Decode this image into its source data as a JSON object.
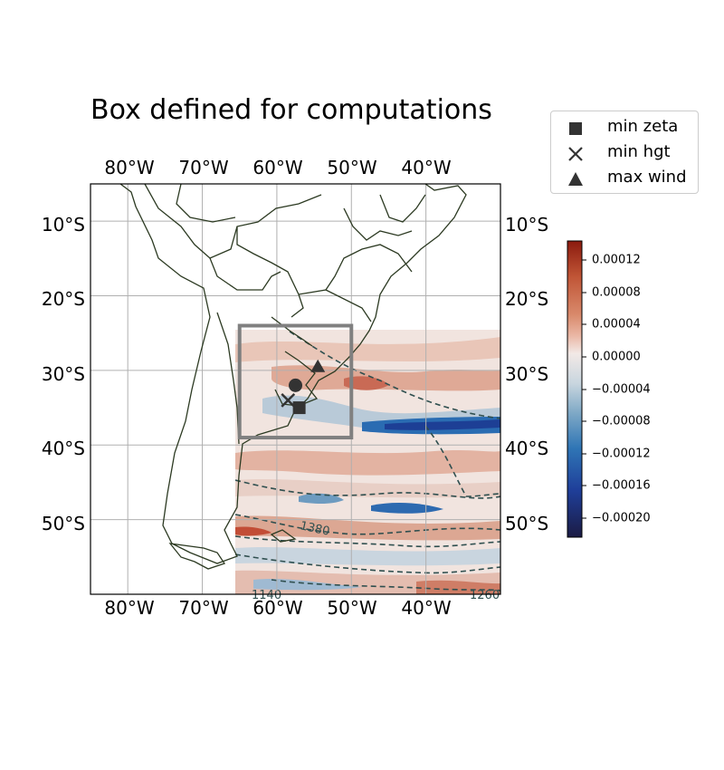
{
  "title": "Box defined for computations",
  "lon_ticks": [
    "80°W",
    "70°W",
    "60°W",
    "50°W",
    "40°W"
  ],
  "lat_ticks": [
    "10°S",
    "20°S",
    "30°S",
    "40°S",
    "50°S"
  ],
  "legend": [
    {
      "label": "min zeta",
      "marker": "square"
    },
    {
      "label": "min hgt",
      "marker": "x"
    },
    {
      "label": "max wind",
      "marker": "triangle"
    }
  ],
  "colorbar": {
    "ticks": [
      "0.00012",
      "0.00008",
      "0.00004",
      "0.00000",
      "−0.00004",
      "−0.00008",
      "−0.00012",
      "−0.00016",
      "−0.00020"
    ],
    "colors": [
      "#8b1a0e",
      "#c05536",
      "#d98a6c",
      "#eab7a5",
      "#f2e9e6",
      "#c9d6df",
      "#7fa9c6",
      "#2f75b5",
      "#1f3f9a",
      "#1b1b44"
    ]
  },
  "contour_labels": [
    "1380",
    "1140",
    "1260"
  ],
  "chart_data": {
    "type": "map",
    "extent": {
      "lon": [
        -85,
        -30
      ],
      "lat": [
        -60,
        -5
      ]
    },
    "grid": true,
    "box": {
      "lon": [
        -65,
        -50
      ],
      "lat": [
        -39,
        -24
      ]
    },
    "markers": [
      {
        "name": "min zeta",
        "marker": "square",
        "lon": -57,
        "lat": -35
      },
      {
        "name": "min hgt",
        "marker": "x",
        "lon": -58.5,
        "lat": -34
      },
      {
        "name": "max wind",
        "marker": "triangle",
        "lon": -54.5,
        "lat": -29.5
      },
      {
        "name": "",
        "marker": "circle",
        "lon": -57.5,
        "lat": -32
      }
    ],
    "field_extent": {
      "lon": [
        -65,
        -30
      ],
      "lat": [
        -60,
        -24
      ]
    },
    "colorbar_range": [
      -0.00022,
      0.00014
    ]
  }
}
